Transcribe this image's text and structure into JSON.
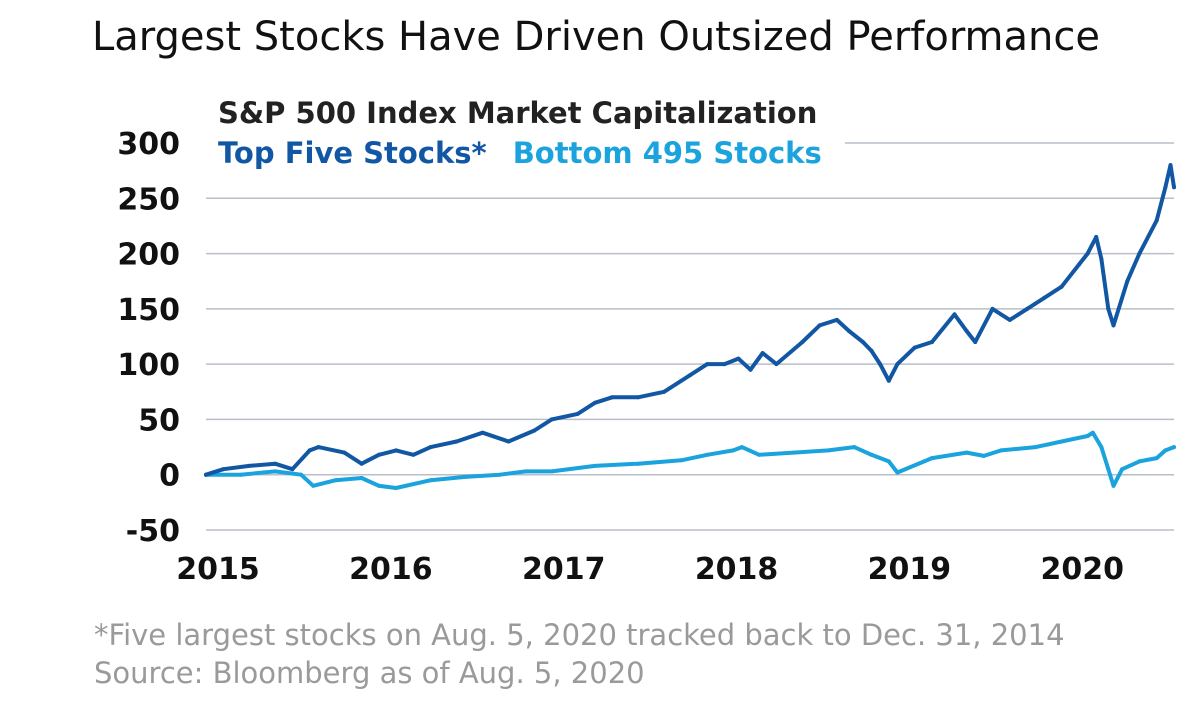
{
  "chart_data": {
    "type": "line",
    "title": "Largest Stocks Have Driven Outsized Performance",
    "subtitle": "S&P 500 Index Market Capitalization",
    "xlabel": "",
    "ylabel": "",
    "ylim": [
      -50,
      300
    ],
    "xlim": [
      2015.0,
      2020.6
    ],
    "yticks": [
      "300",
      "250",
      "200",
      "150",
      "100",
      "50",
      "0",
      "-50"
    ],
    "xticks": [
      "2015",
      "2016",
      "2017",
      "2018",
      "2019",
      "2020"
    ],
    "grid": true,
    "legend_position": "top-left",
    "series": [
      {
        "name": "Top Five Stocks*",
        "color": "#1257a3",
        "x": [
          2015.0,
          2015.1,
          2015.25,
          2015.4,
          2015.5,
          2015.6,
          2015.65,
          2015.8,
          2015.9,
          2016.0,
          2016.1,
          2016.2,
          2016.3,
          2016.45,
          2016.6,
          2016.75,
          2016.9,
          2017.0,
          2017.15,
          2017.25,
          2017.35,
          2017.5,
          2017.65,
          2017.8,
          2017.9,
          2018.0,
          2018.08,
          2018.15,
          2018.22,
          2018.3,
          2018.45,
          2018.55,
          2018.65,
          2018.72,
          2018.8,
          2018.85,
          2018.9,
          2018.95,
          2019.0,
          2019.1,
          2019.2,
          2019.33,
          2019.4,
          2019.45,
          2019.55,
          2019.65,
          2019.75,
          2019.85,
          2019.95,
          2020.05,
          2020.1,
          2020.15,
          2020.18,
          2020.22,
          2020.25,
          2020.33,
          2020.4,
          2020.5,
          2020.55,
          2020.58,
          2020.6
        ],
        "values": [
          0,
          5,
          8,
          10,
          5,
          22,
          25,
          20,
          10,
          18,
          22,
          18,
          25,
          30,
          38,
          30,
          40,
          50,
          55,
          65,
          70,
          70,
          75,
          90,
          100,
          100,
          105,
          95,
          110,
          100,
          120,
          135,
          140,
          130,
          120,
          112,
          100,
          85,
          100,
          115,
          120,
          145,
          130,
          120,
          150,
          140,
          150,
          160,
          170,
          190,
          200,
          215,
          195,
          150,
          135,
          175,
          200,
          230,
          260,
          280,
          260
        ]
      },
      {
        "name": "Bottom 495 Stocks",
        "color": "#1ba3dd",
        "x": [
          2015.0,
          2015.2,
          2015.4,
          2015.55,
          2015.62,
          2015.75,
          2015.9,
          2016.0,
          2016.1,
          2016.3,
          2016.5,
          2016.7,
          2016.85,
          2017.0,
          2017.25,
          2017.5,
          2017.75,
          2017.9,
          2018.05,
          2018.1,
          2018.2,
          2018.4,
          2018.6,
          2018.75,
          2018.85,
          2018.95,
          2019.0,
          2019.2,
          2019.4,
          2019.5,
          2019.6,
          2019.8,
          2019.95,
          2020.1,
          2020.13,
          2020.18,
          2020.22,
          2020.25,
          2020.3,
          2020.4,
          2020.5,
          2020.55,
          2020.6
        ],
        "values": [
          0,
          0,
          3,
          0,
          -10,
          -5,
          -3,
          -10,
          -12,
          -5,
          -2,
          0,
          3,
          3,
          8,
          10,
          13,
          18,
          22,
          25,
          18,
          20,
          22,
          25,
          18,
          12,
          2,
          15,
          20,
          17,
          22,
          25,
          30,
          35,
          38,
          25,
          5,
          -10,
          5,
          12,
          15,
          22,
          25
        ]
      }
    ],
    "footnotes": [
      "*Five largest stocks on Aug. 5, 2020 tracked back to Dec. 31, 2014",
      "Source: Bloomberg as of Aug. 5, 2020"
    ]
  }
}
